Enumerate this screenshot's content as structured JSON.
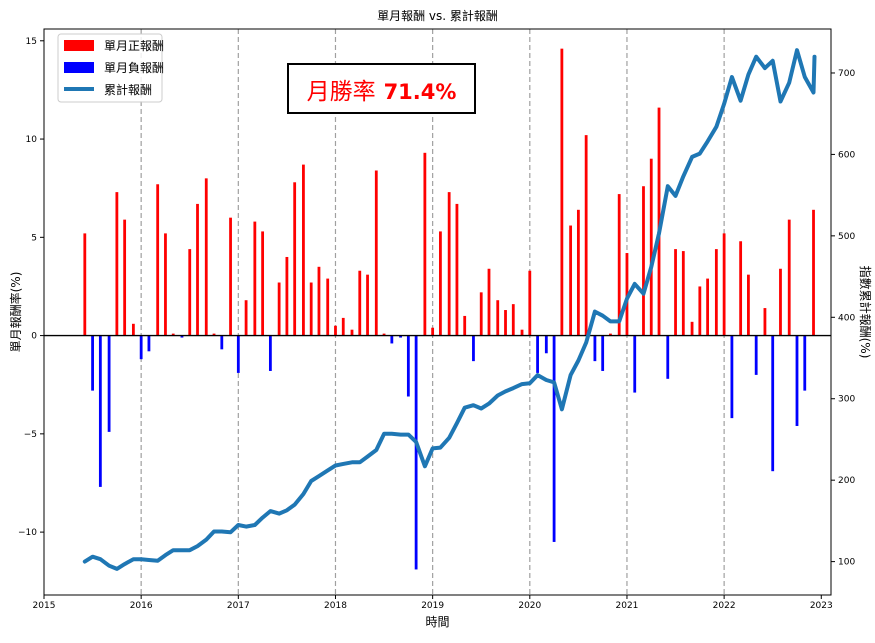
{
  "chart_data": {
    "type": "bar+line",
    "title": "單月報酬 vs. 累計報酬",
    "xlabel": "時間",
    "ylabel_left": "單月報酬率(%)",
    "ylabel_right": "指數累計報酬(%)",
    "annotation": {
      "label": "月勝率",
      "value": "71.4%"
    },
    "legend": {
      "position": "top-left",
      "entries": [
        {
          "label": "單月正報酬",
          "color": "#ff0000",
          "kind": "bar"
        },
        {
          "label": "單月負報酬",
          "color": "#0000ff",
          "kind": "bar"
        },
        {
          "label": "累計報酬",
          "color": "#1f77b4",
          "kind": "line"
        }
      ]
    },
    "x_ticks": [
      "2015",
      "2016",
      "2017",
      "2018",
      "2019",
      "2020",
      "2021",
      "2022",
      "2023"
    ],
    "year_gridlines": [
      2016,
      2017,
      2018,
      2019,
      2020,
      2021,
      2022
    ],
    "x_range": [
      2015.0,
      2023.1
    ],
    "y_left_ticks": [
      15,
      10,
      5,
      0,
      -5,
      -10
    ],
    "y_left_tick_labels": [
      "15",
      "10",
      "5",
      "0",
      "−5",
      "−10"
    ],
    "y_left_range": [
      -13.2,
      15.6
    ],
    "y_right_ticks": [
      100,
      200,
      300,
      400,
      500,
      600,
      700
    ],
    "y_right_range": [
      59,
      754
    ],
    "grid": "vertical dashed at year starts",
    "positive_color": "#ff0000",
    "negative_color": "#0000ff",
    "line_color": "#1f77b4",
    "months": [
      {
        "t": 2015.42,
        "r": 5.2,
        "c": 100
      },
      {
        "t": 2015.5,
        "r": -2.8,
        "c": 106
      },
      {
        "t": 2015.58,
        "r": -7.7,
        "c": 103
      },
      {
        "t": 2015.67,
        "r": -4.9,
        "c": 95
      },
      {
        "t": 2015.75,
        "r": 7.3,
        "c": 91
      },
      {
        "t": 2015.83,
        "r": 5.9,
        "c": 97
      },
      {
        "t": 2015.92,
        "r": 0.6,
        "c": 103
      },
      {
        "t": 2016.0,
        "r": -1.2,
        "c": 103
      },
      {
        "t": 2016.08,
        "r": -0.8,
        "c": 102
      },
      {
        "t": 2016.17,
        "r": 7.7,
        "c": 101
      },
      {
        "t": 2016.25,
        "r": 5.2,
        "c": 108
      },
      {
        "t": 2016.33,
        "r": 0.1,
        "c": 114
      },
      {
        "t": 2016.42,
        "r": -0.1,
        "c": 114
      },
      {
        "t": 2016.5,
        "r": 4.4,
        "c": 114
      },
      {
        "t": 2016.58,
        "r": 6.7,
        "c": 119
      },
      {
        "t": 2016.67,
        "r": 8.0,
        "c": 127
      },
      {
        "t": 2016.75,
        "r": 0.1,
        "c": 137
      },
      {
        "t": 2016.83,
        "r": -0.7,
        "c": 137
      },
      {
        "t": 2016.92,
        "r": 6.0,
        "c": 136
      },
      {
        "t": 2017.0,
        "r": -1.9,
        "c": 145
      },
      {
        "t": 2017.08,
        "r": 1.8,
        "c": 143
      },
      {
        "t": 2017.17,
        "r": 5.8,
        "c": 145
      },
      {
        "t": 2017.25,
        "r": 5.3,
        "c": 154
      },
      {
        "t": 2017.33,
        "r": -1.8,
        "c": 162
      },
      {
        "t": 2017.42,
        "r": 2.7,
        "c": 159
      },
      {
        "t": 2017.5,
        "r": 4.0,
        "c": 163
      },
      {
        "t": 2017.58,
        "r": 7.8,
        "c": 170
      },
      {
        "t": 2017.67,
        "r": 8.7,
        "c": 183
      },
      {
        "t": 2017.75,
        "r": 2.7,
        "c": 199
      },
      {
        "t": 2017.83,
        "r": 3.5,
        "c": 205
      },
      {
        "t": 2017.92,
        "r": 2.9,
        "c": 212
      },
      {
        "t": 2018.0,
        "r": 0.5,
        "c": 218
      },
      {
        "t": 2018.08,
        "r": 0.9,
        "c": 220
      },
      {
        "t": 2018.17,
        "r": 0.3,
        "c": 222
      },
      {
        "t": 2018.25,
        "r": 3.3,
        "c": 222
      },
      {
        "t": 2018.33,
        "r": 3.1,
        "c": 229
      },
      {
        "t": 2018.42,
        "r": 8.4,
        "c": 237
      },
      {
        "t": 2018.5,
        "r": 0.1,
        "c": 257
      },
      {
        "t": 2018.58,
        "r": -0.4,
        "c": 257
      },
      {
        "t": 2018.67,
        "r": -0.1,
        "c": 256
      },
      {
        "t": 2018.75,
        "r": -3.1,
        "c": 256
      },
      {
        "t": 2018.83,
        "r": -11.9,
        "c": 247
      },
      {
        "t": 2018.92,
        "r": 9.3,
        "c": 217
      },
      {
        "t": 2019.0,
        "r": 0.4,
        "c": 239
      },
      {
        "t": 2019.08,
        "r": 5.3,
        "c": 240
      },
      {
        "t": 2019.17,
        "r": 7.3,
        "c": 252
      },
      {
        "t": 2019.25,
        "r": 6.7,
        "c": 270
      },
      {
        "t": 2019.33,
        "r": 1.0,
        "c": 289
      },
      {
        "t": 2019.42,
        "r": -1.3,
        "c": 292
      },
      {
        "t": 2019.5,
        "r": 2.2,
        "c": 288
      },
      {
        "t": 2019.58,
        "r": 3.4,
        "c": 294
      },
      {
        "t": 2019.67,
        "r": 1.8,
        "c": 304
      },
      {
        "t": 2019.75,
        "r": 1.3,
        "c": 309
      },
      {
        "t": 2019.83,
        "r": 1.6,
        "c": 313
      },
      {
        "t": 2019.92,
        "r": 0.3,
        "c": 318
      },
      {
        "t": 2020.0,
        "r": 3.3,
        "c": 319
      },
      {
        "t": 2020.08,
        "r": -1.9,
        "c": 329
      },
      {
        "t": 2020.17,
        "r": -0.9,
        "c": 323
      },
      {
        "t": 2020.25,
        "r": -10.5,
        "c": 320
      },
      {
        "t": 2020.33,
        "r": 14.6,
        "c": 287
      },
      {
        "t": 2020.42,
        "r": 5.6,
        "c": 329
      },
      {
        "t": 2020.5,
        "r": 6.4,
        "c": 347
      },
      {
        "t": 2020.58,
        "r": 10.2,
        "c": 369
      },
      {
        "t": 2020.67,
        "r": -1.3,
        "c": 407
      },
      {
        "t": 2020.75,
        "r": -1.8,
        "c": 402
      },
      {
        "t": 2020.83,
        "r": 0.1,
        "c": 395
      },
      {
        "t": 2020.92,
        "r": 7.2,
        "c": 395
      },
      {
        "t": 2021.0,
        "r": 4.2,
        "c": 423
      },
      {
        "t": 2021.08,
        "r": -2.9,
        "c": 441
      },
      {
        "t": 2021.17,
        "r": 7.6,
        "c": 429
      },
      {
        "t": 2021.25,
        "r": 9.0,
        "c": 462
      },
      {
        "t": 2021.33,
        "r": 11.6,
        "c": 503
      },
      {
        "t": 2021.42,
        "r": -2.2,
        "c": 561
      },
      {
        "t": 2021.5,
        "r": 4.4,
        "c": 549
      },
      {
        "t": 2021.58,
        "r": 4.3,
        "c": 573
      },
      {
        "t": 2021.67,
        "r": 0.7,
        "c": 597
      },
      {
        "t": 2021.75,
        "r": 2.5,
        "c": 601
      },
      {
        "t": 2021.83,
        "r": 2.9,
        "c": 616
      },
      {
        "t": 2021.92,
        "r": 4.4,
        "c": 634
      },
      {
        "t": 2022.0,
        "r": 5.2,
        "c": 662
      },
      {
        "t": 2022.08,
        "r": -4.2,
        "c": 695
      },
      {
        "t": 2022.17,
        "r": 4.8,
        "c": 666
      },
      {
        "t": 2022.25,
        "r": 3.1,
        "c": 698
      },
      {
        "t": 2022.33,
        "r": -2.0,
        "c": 720
      },
      {
        "t": 2022.42,
        "r": 1.4,
        "c": 706
      },
      {
        "t": 2022.5,
        "r": -6.9,
        "c": 715
      },
      {
        "t": 2022.58,
        "r": 3.4,
        "c": 665
      },
      {
        "t": 2022.67,
        "r": 5.9,
        "c": 688
      },
      {
        "t": 2022.75,
        "r": -4.6,
        "c": 728
      },
      {
        "t": 2022.83,
        "r": -2.8,
        "c": 695
      },
      {
        "t": 2022.92,
        "r": 6.4,
        "c": 676
      },
      {
        "t": 2022.93,
        "r": null,
        "c": 720
      }
    ]
  }
}
